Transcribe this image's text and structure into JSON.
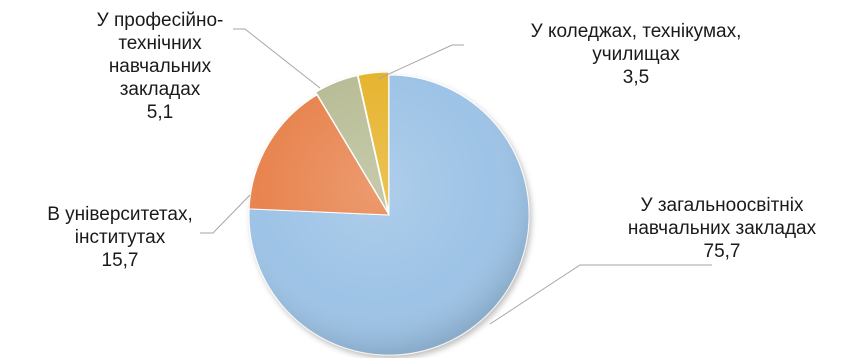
{
  "chart_data": {
    "type": "pie",
    "title": "",
    "slices": [
      {
        "label_lines": [
          "У загальноосвітніх",
          "навчальних закладах"
        ],
        "value": 75.7,
        "value_text": "75,7",
        "color": "#9dc3e6"
      },
      {
        "label_lines": [
          "В університетах,",
          "інститутах"
        ],
        "value": 15.7,
        "value_text": "15,7",
        "color": "#e8844f"
      },
      {
        "label_lines": [
          "У професійно-",
          "технічних",
          "навчальних",
          "закладах"
        ],
        "value": 5.1,
        "value_text": "5,1",
        "color": "#b8bd96"
      },
      {
        "label_lines": [
          "У коледжах, технікумах,",
          "училищах"
        ],
        "value": 3.5,
        "value_text": "3,5",
        "color": "#e6b42f"
      }
    ],
    "start_angle": "12 o'clock",
    "direction": "clockwise",
    "legend": "none",
    "leader_line_color": "#a6a6a6"
  }
}
